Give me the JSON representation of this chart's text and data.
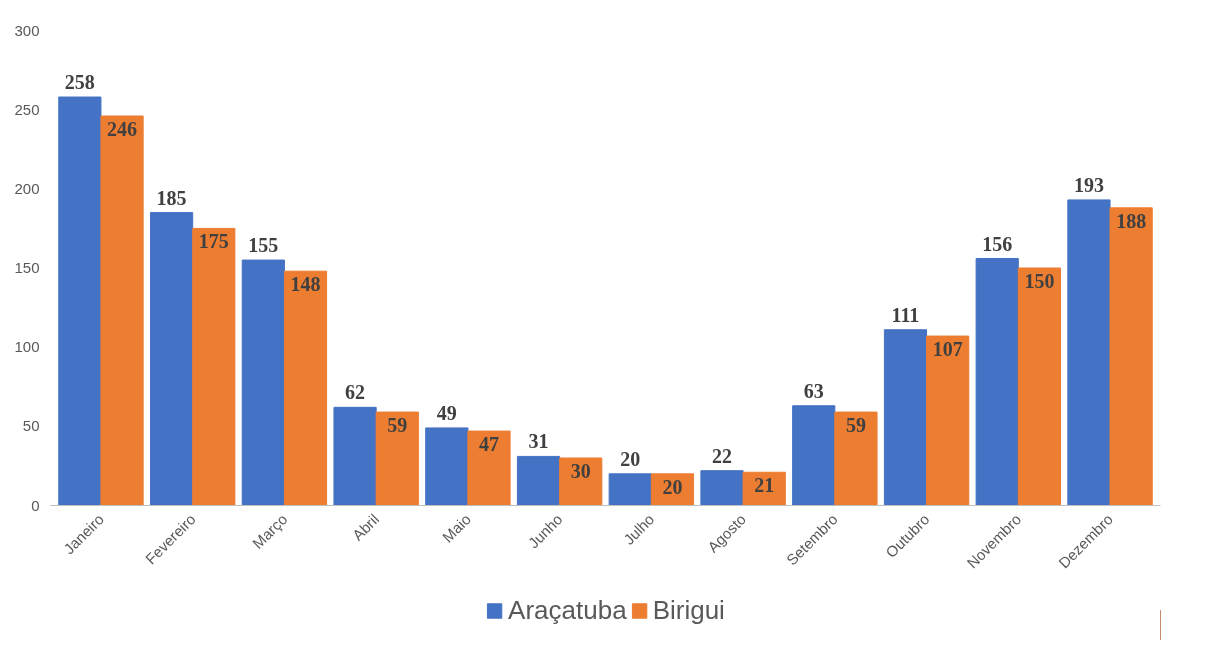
{
  "chart_data": {
    "type": "bar",
    "categories": [
      "Janeiro",
      "Fevereiro",
      "Março",
      "Abril",
      "Maio",
      "Junho",
      "Julho",
      "Agosto",
      "Setembro",
      "Outubro",
      "Novembro",
      "Dezembro"
    ],
    "series": [
      {
        "name": "Araçatuba",
        "color": "#4472c4",
        "values": [
          258,
          185,
          155,
          62,
          49,
          31,
          20,
          22,
          63,
          111,
          156,
          193
        ]
      },
      {
        "name": "Birigui",
        "color": "#ed7d31",
        "values": [
          246,
          175,
          148,
          59,
          47,
          30,
          20,
          21,
          59,
          107,
          150,
          188
        ]
      }
    ],
    "ylim": [
      0,
      300
    ],
    "yticks": [
      0,
      50,
      100,
      150,
      200,
      250,
      300
    ],
    "grid": false,
    "legend": "bottom",
    "data_labels": true
  }
}
